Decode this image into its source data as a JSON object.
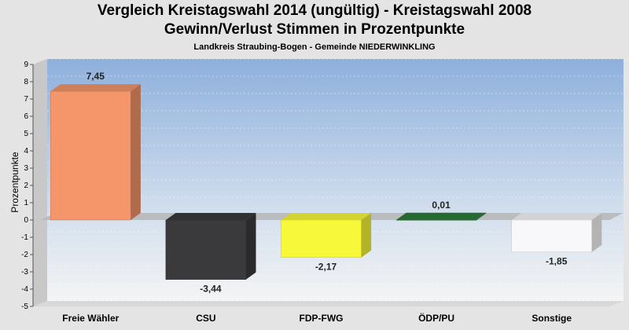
{
  "chart_data": {
    "type": "bar",
    "title": "Vergleich Kreistagswahl 2014 (ungültig) - Kreistagswahl 2008",
    "subtitle": "Gewinn/Verlust Stimmen in Prozentpunkte",
    "subsubtitle": "Landkreis Straubing-Bogen - Gemeinde NIEDERWINKLING",
    "ylabel": "Prozentpunkte",
    "xlabel": "",
    "ylim": [
      -5,
      9
    ],
    "yticks": [
      9,
      8,
      7,
      6,
      5,
      4,
      3,
      2,
      1,
      0,
      -1,
      -2,
      -3,
      -4,
      -5
    ],
    "categories": [
      "Freie Wähler",
      "CSU",
      "FDP-FWG",
      "ÖDP/PU",
      "Sonstige"
    ],
    "values": [
      7.45,
      -3.44,
      -2.17,
      0.01,
      -1.85
    ],
    "value_labels": [
      "7,45",
      "-3,44",
      "-2,17",
      "0,01",
      "-1,85"
    ],
    "colors": [
      "#f4956a",
      "#3a3a3c",
      "#f8f83a",
      "#2e7d3a",
      "#f8f8fa"
    ],
    "grid": true
  }
}
